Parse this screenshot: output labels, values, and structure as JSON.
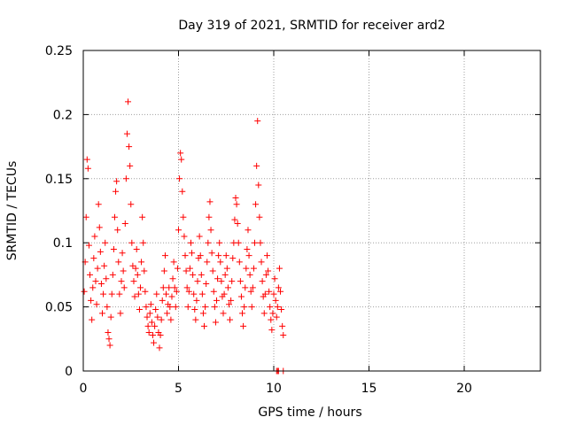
{
  "chart_data": {
    "type": "scatter",
    "title": "Day 319 of 2021, SRMTID for receiver ard2",
    "xlabel": "GPS time / hours",
    "ylabel": "SRMTID / TECUs",
    "xlim": [
      0,
      24
    ],
    "ylim": [
      0,
      0.25
    ],
    "xticks": [
      0,
      5,
      10,
      15,
      20
    ],
    "xtick_labels": [
      "0",
      "5",
      "10",
      "15",
      "20"
    ],
    "yticks": [
      0,
      0.05,
      0.1,
      0.15,
      0.2,
      0.25
    ],
    "ytick_labels": [
      "0",
      "0.05",
      "0.1",
      "0.15",
      "0.2",
      "0.25"
    ],
    "grid": true,
    "marker": "+",
    "series": [
      {
        "name": "SRMTID",
        "color": "#ff0000",
        "points": [
          [
            0.05,
            0.062
          ],
          [
            0.1,
            0.085
          ],
          [
            0.15,
            0.12
          ],
          [
            0.2,
            0.165
          ],
          [
            0.25,
            0.158
          ],
          [
            0.3,
            0.098
          ],
          [
            0.35,
            0.075
          ],
          [
            0.4,
            0.055
          ],
          [
            0.45,
            0.04
          ],
          [
            0.5,
            0.065
          ],
          [
            0.55,
            0.088
          ],
          [
            0.6,
            0.105
          ],
          [
            0.65,
            0.07
          ],
          [
            0.7,
            0.052
          ],
          [
            0.75,
            0.08
          ],
          [
            0.8,
            0.13
          ],
          [
            0.85,
            0.112
          ],
          [
            0.9,
            0.093
          ],
          [
            0.95,
            0.068
          ],
          [
            1.0,
            0.045
          ],
          [
            1.05,
            0.06
          ],
          [
            1.1,
            0.082
          ],
          [
            1.15,
            0.1
          ],
          [
            1.2,
            0.072
          ],
          [
            1.25,
            0.05
          ],
          [
            1.3,
            0.03
          ],
          [
            1.35,
            0.025
          ],
          [
            1.4,
            0.02
          ],
          [
            1.45,
            0.042
          ],
          [
            1.5,
            0.06
          ],
          [
            1.55,
            0.075
          ],
          [
            1.6,
            0.095
          ],
          [
            1.65,
            0.12
          ],
          [
            1.7,
            0.14
          ],
          [
            1.75,
            0.148
          ],
          [
            1.8,
            0.11
          ],
          [
            1.85,
            0.085
          ],
          [
            1.9,
            0.06
          ],
          [
            1.95,
            0.045
          ],
          [
            2.0,
            0.07
          ],
          [
            2.05,
            0.092
          ],
          [
            2.1,
            0.078
          ],
          [
            2.15,
            0.065
          ],
          [
            2.2,
            0.115
          ],
          [
            2.25,
            0.15
          ],
          [
            2.3,
            0.185
          ],
          [
            2.35,
            0.21
          ],
          [
            2.4,
            0.175
          ],
          [
            2.45,
            0.16
          ],
          [
            2.5,
            0.13
          ],
          [
            2.55,
            0.1
          ],
          [
            2.6,
            0.082
          ],
          [
            2.65,
            0.07
          ],
          [
            2.7,
            0.058
          ],
          [
            2.75,
            0.08
          ],
          [
            2.8,
            0.095
          ],
          [
            2.85,
            0.075
          ],
          [
            2.9,
            0.06
          ],
          [
            2.95,
            0.048
          ],
          [
            3.0,
            0.065
          ],
          [
            3.05,
            0.085
          ],
          [
            3.1,
            0.12
          ],
          [
            3.15,
            0.1
          ],
          [
            3.2,
            0.078
          ],
          [
            3.25,
            0.062
          ],
          [
            3.3,
            0.05
          ],
          [
            3.35,
            0.042
          ],
          [
            3.4,
            0.035
          ],
          [
            3.45,
            0.03
          ],
          [
            3.5,
            0.045
          ],
          [
            3.55,
            0.052
          ],
          [
            3.6,
            0.038
          ],
          [
            3.65,
            0.028
          ],
          [
            3.7,
            0.022
          ],
          [
            3.75,
            0.035
          ],
          [
            3.8,
            0.048
          ],
          [
            3.85,
            0.06
          ],
          [
            3.9,
            0.042
          ],
          [
            3.95,
            0.03
          ],
          [
            4.0,
            0.018
          ],
          [
            4.05,
            0.028
          ],
          [
            4.1,
            0.04
          ],
          [
            4.15,
            0.055
          ],
          [
            4.2,
            0.065
          ],
          [
            4.25,
            0.078
          ],
          [
            4.3,
            0.09
          ],
          [
            4.35,
            0.06
          ],
          [
            4.4,
            0.045
          ],
          [
            4.45,
            0.052
          ],
          [
            4.5,
            0.065
          ],
          [
            4.55,
            0.05
          ],
          [
            4.6,
            0.04
          ],
          [
            4.65,
            0.058
          ],
          [
            4.7,
            0.072
          ],
          [
            4.75,
            0.085
          ],
          [
            4.8,
            0.065
          ],
          [
            4.85,
            0.05
          ],
          [
            4.9,
            0.062
          ],
          [
            4.95,
            0.08
          ],
          [
            5.0,
            0.11
          ],
          [
            5.05,
            0.15
          ],
          [
            5.1,
            0.17
          ],
          [
            5.15,
            0.165
          ],
          [
            5.2,
            0.14
          ],
          [
            5.25,
            0.12
          ],
          [
            5.3,
            0.105
          ],
          [
            5.35,
            0.09
          ],
          [
            5.4,
            0.078
          ],
          [
            5.45,
            0.065
          ],
          [
            5.5,
            0.05
          ],
          [
            5.55,
            0.062
          ],
          [
            5.6,
            0.08
          ],
          [
            5.65,
            0.1
          ],
          [
            5.7,
            0.092
          ],
          [
            5.75,
            0.075
          ],
          [
            5.8,
            0.06
          ],
          [
            5.85,
            0.048
          ],
          [
            5.9,
            0.04
          ],
          [
            5.95,
            0.055
          ],
          [
            6.0,
            0.07
          ],
          [
            6.05,
            0.088
          ],
          [
            6.1,
            0.105
          ],
          [
            6.15,
            0.09
          ],
          [
            6.2,
            0.075
          ],
          [
            6.25,
            0.06
          ],
          [
            6.3,
            0.045
          ],
          [
            6.35,
            0.035
          ],
          [
            6.4,
            0.05
          ],
          [
            6.45,
            0.068
          ],
          [
            6.5,
            0.085
          ],
          [
            6.55,
            0.1
          ],
          [
            6.6,
            0.12
          ],
          [
            6.65,
            0.132
          ],
          [
            6.7,
            0.11
          ],
          [
            6.75,
            0.092
          ],
          [
            6.8,
            0.078
          ],
          [
            6.85,
            0.062
          ],
          [
            6.9,
            0.05
          ],
          [
            6.95,
            0.038
          ],
          [
            7.0,
            0.055
          ],
          [
            7.05,
            0.072
          ],
          [
            7.1,
            0.09
          ],
          [
            7.15,
            0.1
          ],
          [
            7.2,
            0.085
          ],
          [
            7.25,
            0.07
          ],
          [
            7.3,
            0.058
          ],
          [
            7.35,
            0.045
          ],
          [
            7.4,
            0.06
          ],
          [
            7.45,
            0.075
          ],
          [
            7.5,
            0.09
          ],
          [
            7.55,
            0.08
          ],
          [
            7.6,
            0.065
          ],
          [
            7.65,
            0.052
          ],
          [
            7.7,
            0.04
          ],
          [
            7.75,
            0.055
          ],
          [
            7.8,
            0.07
          ],
          [
            7.85,
            0.088
          ],
          [
            7.9,
            0.1
          ],
          [
            7.95,
            0.118
          ],
          [
            8.0,
            0.135
          ],
          [
            8.05,
            0.13
          ],
          [
            8.1,
            0.115
          ],
          [
            8.15,
            0.1
          ],
          [
            8.2,
            0.085
          ],
          [
            8.25,
            0.07
          ],
          [
            8.3,
            0.058
          ],
          [
            8.35,
            0.045
          ],
          [
            8.4,
            0.035
          ],
          [
            8.45,
            0.05
          ],
          [
            8.5,
            0.065
          ],
          [
            8.55,
            0.08
          ],
          [
            8.6,
            0.095
          ],
          [
            8.65,
            0.11
          ],
          [
            8.7,
            0.09
          ],
          [
            8.75,
            0.075
          ],
          [
            8.8,
            0.062
          ],
          [
            8.85,
            0.05
          ],
          [
            8.9,
            0.065
          ],
          [
            8.95,
            0.08
          ],
          [
            9.0,
            0.1
          ],
          [
            9.05,
            0.13
          ],
          [
            9.1,
            0.16
          ],
          [
            9.15,
            0.195
          ],
          [
            9.2,
            0.145
          ],
          [
            9.25,
            0.12
          ],
          [
            9.3,
            0.1
          ],
          [
            9.35,
            0.085
          ],
          [
            9.4,
            0.07
          ],
          [
            9.45,
            0.058
          ],
          [
            9.5,
            0.045
          ],
          [
            9.55,
            0.06
          ],
          [
            9.6,
            0.075
          ],
          [
            9.65,
            0.09
          ],
          [
            9.7,
            0.078
          ],
          [
            9.75,
            0.062
          ],
          [
            9.8,
            0.05
          ],
          [
            9.85,
            0.04
          ],
          [
            9.9,
            0.032
          ],
          [
            9.95,
            0.045
          ],
          [
            10.0,
            0.06
          ],
          [
            10.05,
            0.072
          ],
          [
            10.1,
            0.055
          ],
          [
            10.15,
            0.042
          ],
          [
            10.2,
            0.05
          ],
          [
            10.25,
            0.065
          ],
          [
            10.3,
            0.08
          ],
          [
            10.35,
            0.062
          ],
          [
            10.4,
            0.048
          ],
          [
            10.45,
            0.035
          ],
          [
            10.5,
            0.028
          ],
          [
            10.15,
            0.0
          ],
          [
            10.2,
            0.0
          ],
          [
            10.25,
            0.0
          ],
          [
            10.5,
            0.0
          ]
        ]
      }
    ]
  }
}
